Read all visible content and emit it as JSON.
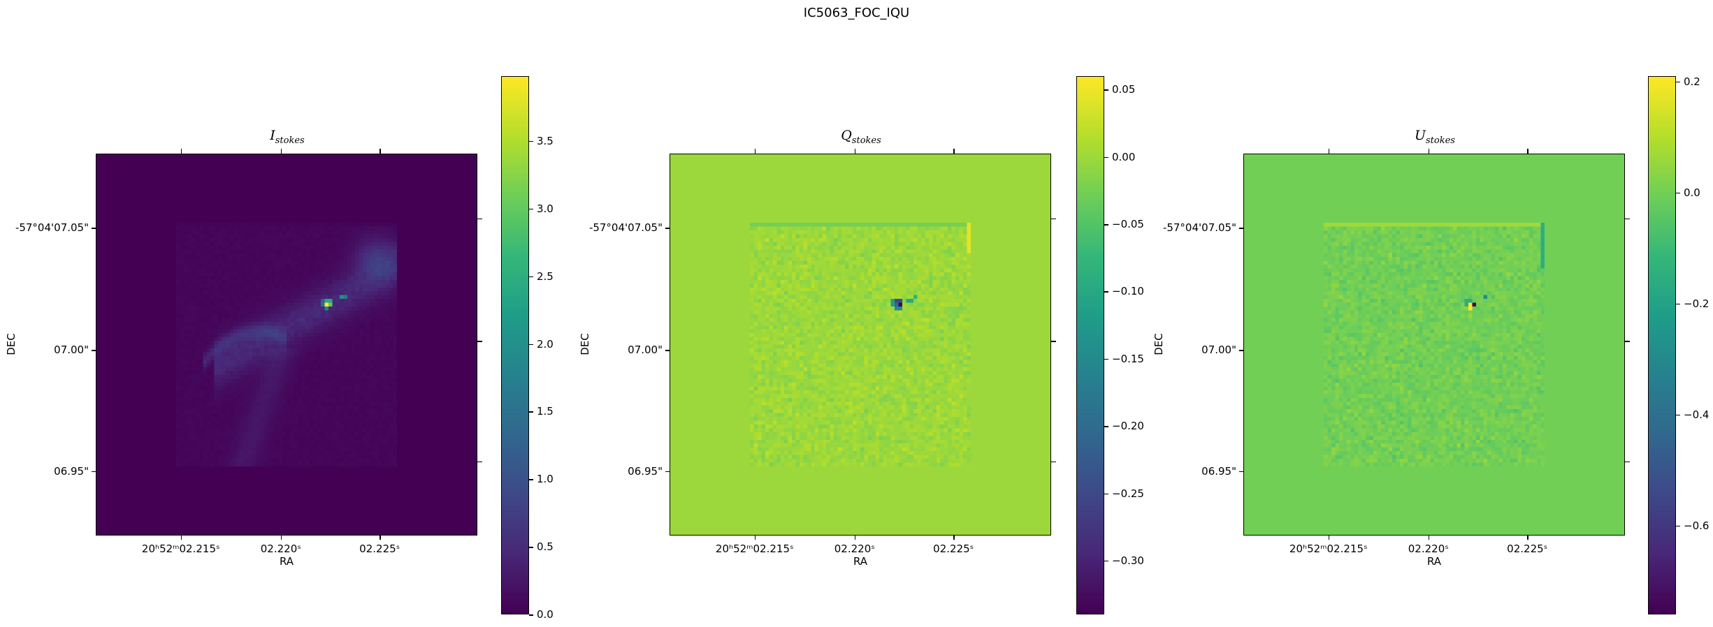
{
  "figure_title": "IC5063_FOC_IQU",
  "chart_data": [
    {
      "type": "heatmap",
      "title": {
        "symbol": "I",
        "subscript": "stokes"
      },
      "xlabel": "RA",
      "ylabel": "DEC",
      "xtick_labels": [
        "20ʰ52ᵐ02.215ˢ",
        "02.220ˢ",
        "02.225ˢ"
      ],
      "ytick_labels": [
        "-57°04'07.05\"",
        "07.00\"",
        "06.95\""
      ],
      "colormap": "viridis",
      "background_value": 0.0,
      "colorbar": {
        "min": 0.0,
        "max": 3.98,
        "ticks": [
          0.0,
          0.5,
          1.0,
          1.5,
          2.0,
          2.5,
          3.0,
          3.5
        ],
        "tick_labels": [
          "0.0",
          "0.5",
          "1.0",
          "1.5",
          "2.0",
          "2.5",
          "3.0",
          "3.5"
        ]
      }
    },
    {
      "type": "heatmap",
      "title": {
        "symbol": "Q",
        "subscript": "stokes"
      },
      "xlabel": "RA",
      "ylabel": "DEC",
      "xtick_labels": [
        "20ʰ52ᵐ02.215ˢ",
        "02.220ˢ",
        "02.225ˢ"
      ],
      "ytick_labels": [
        "-57°04'07.05\"",
        "07.00\"",
        "06.95\""
      ],
      "colormap": "viridis",
      "background_value": 0.0,
      "colorbar": {
        "min": -0.34,
        "max": 0.06,
        "ticks": [
          0.05,
          0.0,
          -0.05,
          -0.1,
          -0.15,
          -0.2,
          -0.25,
          -0.3
        ],
        "tick_labels": [
          "0.05",
          "0.00",
          "−0.05",
          "−0.10",
          "−0.15",
          "−0.20",
          "−0.25",
          "−0.30"
        ]
      }
    },
    {
      "type": "heatmap",
      "title": {
        "symbol": "U",
        "subscript": "stokes"
      },
      "xlabel": "RA",
      "ylabel": "DEC",
      "xtick_labels": [
        "20ʰ52ᵐ02.215ˢ",
        "02.220ˢ",
        "02.225ˢ"
      ],
      "ytick_labels": [
        "-57°04'07.05\"",
        "07.00\"",
        "06.95\""
      ],
      "colormap": "viridis",
      "background_value": 0.0,
      "colorbar": {
        "min": -0.76,
        "max": 0.21,
        "ticks": [
          0.2,
          0.0,
          -0.2,
          -0.4,
          -0.6
        ],
        "tick_labels": [
          "0.2",
          "0.0",
          "−0.2",
          "−0.4",
          "−0.6"
        ]
      }
    }
  ]
}
